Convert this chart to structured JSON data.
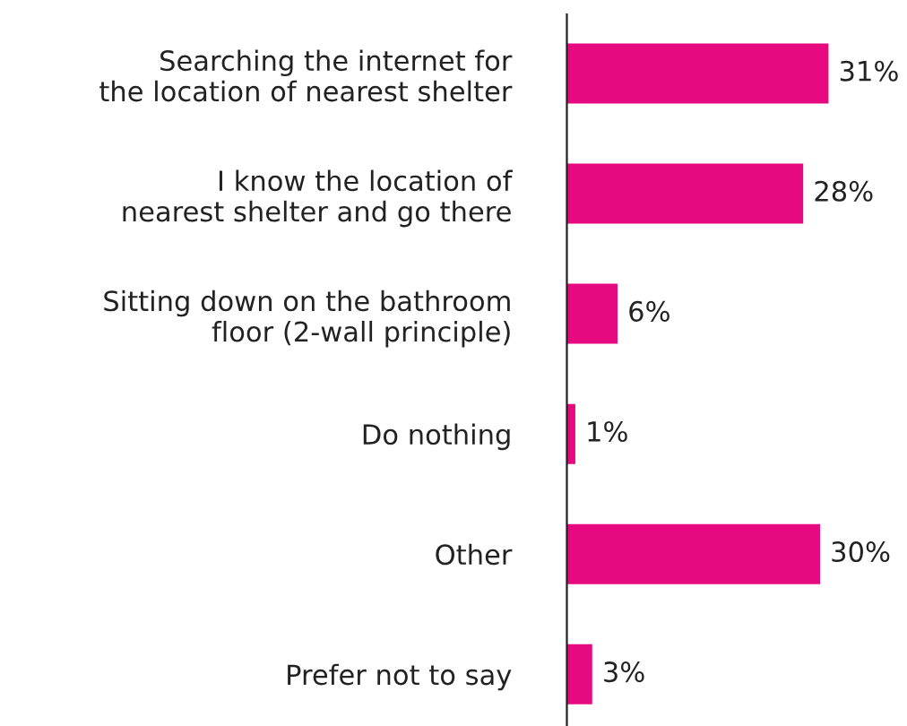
{
  "chart_data": {
    "type": "bar",
    "orientation": "horizontal",
    "categories": [
      "Searching the internet for\nthe location of nearest shelter",
      "I know the location of\nnearest shelter and go there",
      "Sitting down on the bathroom\nfloor (2-wall principle)",
      "Do nothing",
      "Other",
      "Prefer not to say"
    ],
    "values": [
      31,
      28,
      6,
      1,
      30,
      3
    ],
    "value_labels": [
      "31%",
      "28%",
      "6%",
      "1%",
      "30%",
      "3%"
    ],
    "color": "#e6097f",
    "tick_labels": "y",
    "grid": false,
    "legend": false
  }
}
